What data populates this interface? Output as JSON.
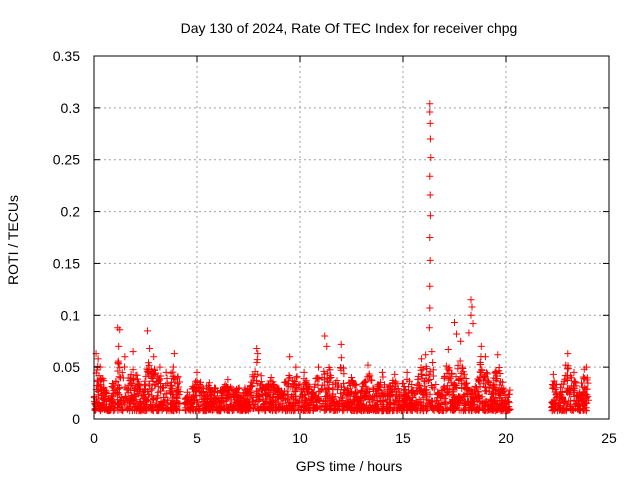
{
  "chart_data": {
    "type": "scatter",
    "title": "Day 130 of 2024, Rate Of TEC Index for receiver chpg",
    "xlabel": "GPS time / hours",
    "ylabel": "ROTI / TECUs",
    "xlim": [
      0,
      25
    ],
    "ylim": [
      0,
      0.35
    ],
    "x_ticks": [
      0,
      5,
      10,
      15,
      20,
      25
    ],
    "y_ticks": [
      0,
      0.05,
      0.1,
      0.15,
      0.2,
      0.25,
      0.3,
      0.35
    ],
    "x_tick_labels": [
      "0",
      "5",
      "10",
      "15",
      "20",
      "25"
    ],
    "y_tick_labels": [
      "0",
      "0.05",
      "0.1",
      "0.15",
      "0.2",
      "0.25",
      "0.3",
      "0.35"
    ],
    "grid": true,
    "marker": "plus",
    "color": "#ff0000",
    "series": [
      {
        "name": "ROTI",
        "segments": [
          {
            "x_start": 0.0,
            "x_end": 4.2,
            "base_low": 0.008,
            "base_high": 0.03
          },
          {
            "x_start": 4.4,
            "x_end": 20.2,
            "base_low": 0.008,
            "base_high": 0.03
          },
          {
            "x_start": 22.2,
            "x_end": 24.0,
            "base_low": 0.008,
            "base_high": 0.025
          }
        ],
        "peaks": [
          {
            "x": 0.1,
            "y": 0.063
          },
          {
            "x": 0.2,
            "y": 0.058
          },
          {
            "x": 0.3,
            "y": 0.05
          },
          {
            "x": 1.15,
            "y": 0.088
          },
          {
            "x": 1.25,
            "y": 0.086
          },
          {
            "x": 1.2,
            "y": 0.07
          },
          {
            "x": 1.5,
            "y": 0.06
          },
          {
            "x": 1.9,
            "y": 0.065
          },
          {
            "x": 2.6,
            "y": 0.085
          },
          {
            "x": 2.7,
            "y": 0.068
          },
          {
            "x": 2.9,
            "y": 0.06
          },
          {
            "x": 3.2,
            "y": 0.05
          },
          {
            "x": 3.5,
            "y": 0.045
          },
          {
            "x": 3.9,
            "y": 0.063
          },
          {
            "x": 5.0,
            "y": 0.045
          },
          {
            "x": 5.6,
            "y": 0.035
          },
          {
            "x": 6.5,
            "y": 0.038
          },
          {
            "x": 7.9,
            "y": 0.068
          },
          {
            "x": 7.95,
            "y": 0.063
          },
          {
            "x": 8.6,
            "y": 0.04
          },
          {
            "x": 9.5,
            "y": 0.06
          },
          {
            "x": 9.8,
            "y": 0.05
          },
          {
            "x": 10.2,
            "y": 0.045
          },
          {
            "x": 10.9,
            "y": 0.05
          },
          {
            "x": 11.2,
            "y": 0.08
          },
          {
            "x": 11.3,
            "y": 0.07
          },
          {
            "x": 12.0,
            "y": 0.072
          },
          {
            "x": 12.5,
            "y": 0.04
          },
          {
            "x": 13.3,
            "y": 0.052
          },
          {
            "x": 14.0,
            "y": 0.045
          },
          {
            "x": 14.6,
            "y": 0.043
          },
          {
            "x": 15.2,
            "y": 0.045
          },
          {
            "x": 15.9,
            "y": 0.058
          },
          {
            "x": 16.1,
            "y": 0.062
          },
          {
            "x": 16.3,
            "y": 0.304
          },
          {
            "x": 16.3,
            "y": 0.296
          },
          {
            "x": 16.32,
            "y": 0.285
          },
          {
            "x": 16.33,
            "y": 0.27
          },
          {
            "x": 16.35,
            "y": 0.252
          },
          {
            "x": 16.3,
            "y": 0.234
          },
          {
            "x": 16.32,
            "y": 0.216
          },
          {
            "x": 16.33,
            "y": 0.196
          },
          {
            "x": 16.3,
            "y": 0.175
          },
          {
            "x": 16.32,
            "y": 0.153
          },
          {
            "x": 16.3,
            "y": 0.128
          },
          {
            "x": 16.3,
            "y": 0.107
          },
          {
            "x": 16.28,
            "y": 0.088
          },
          {
            "x": 16.4,
            "y": 0.065
          },
          {
            "x": 17.2,
            "y": 0.067
          },
          {
            "x": 17.5,
            "y": 0.093
          },
          {
            "x": 17.6,
            "y": 0.082
          },
          {
            "x": 17.8,
            "y": 0.075
          },
          {
            "x": 18.3,
            "y": 0.115
          },
          {
            "x": 18.35,
            "y": 0.108
          },
          {
            "x": 18.3,
            "y": 0.1
          },
          {
            "x": 18.4,
            "y": 0.092
          },
          {
            "x": 18.2,
            "y": 0.083
          },
          {
            "x": 18.8,
            "y": 0.07
          },
          {
            "x": 19.0,
            "y": 0.06
          },
          {
            "x": 19.6,
            "y": 0.062
          },
          {
            "x": 22.3,
            "y": 0.043
          },
          {
            "x": 22.9,
            "y": 0.052
          },
          {
            "x": 23.0,
            "y": 0.063
          },
          {
            "x": 23.3,
            "y": 0.045
          },
          {
            "x": 23.8,
            "y": 0.048
          },
          {
            "x": 23.9,
            "y": 0.05
          }
        ]
      }
    ]
  }
}
